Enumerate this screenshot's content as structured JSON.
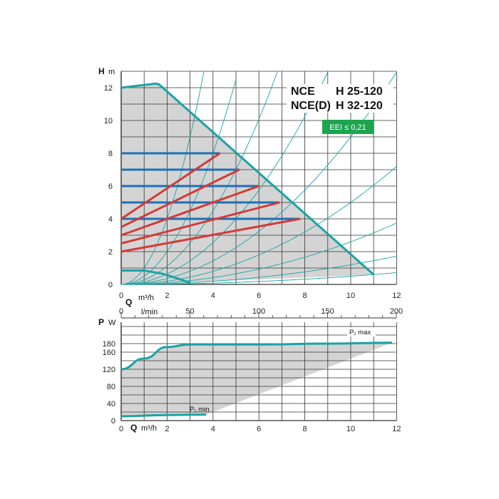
{
  "colors": {
    "teal": "#1aa3a5",
    "red": "#d23b37",
    "blue": "#1e6fb5",
    "shade": "#d4d4d4",
    "badge": "#1ea44f",
    "grid": "#333333"
  },
  "chart_data": [
    {
      "type": "line",
      "title": "",
      "model_lines": [
        "NCE",
        "H 25-120",
        "NCE(D)",
        "H 32-120"
      ],
      "badge": "EEI ≤ 0,21",
      "ylabel": "H",
      "ylabel_unit": "m",
      "xlabel": "Q",
      "xlabel_unit": "m³/h",
      "xlabel2_unit": "l/min",
      "xlim": [
        0,
        12
      ],
      "ylim": [
        0,
        13
      ],
      "x_ticks": [
        "0",
        "2",
        "4",
        "6",
        "8",
        "10",
        "12"
      ],
      "y_ticks": [
        "0",
        "2",
        "4",
        "6",
        "8",
        "10",
        "12"
      ],
      "x2_ticks": [
        "0",
        "50",
        "100",
        "150",
        "200"
      ],
      "grid": true,
      "max_curve": {
        "name": "max",
        "x": [
          0,
          1.5,
          1.65,
          11
        ],
        "y": [
          12,
          12.25,
          12.2,
          0.6
        ]
      },
      "min_curve": {
        "name": "min",
        "x": [
          0,
          1.0,
          1.8,
          2.5,
          3.0
        ],
        "y": [
          0.85,
          0.85,
          0.65,
          0.35,
          0.1
        ]
      },
      "constant_pressure": [
        {
          "head": 4,
          "x_end": 7.8
        },
        {
          "head": 5,
          "x_end": 6.9
        },
        {
          "head": 6,
          "x_end": 6.0
        },
        {
          "head": 7,
          "x_end": 5.15
        },
        {
          "head": 8,
          "x_end": 4.3
        }
      ],
      "proportional_pressure": [
        {
          "y_start": 2.0,
          "x_end": 7.8,
          "y_end": 4.0
        },
        {
          "y_start": 2.5,
          "x_end": 6.9,
          "y_end": 5.0
        },
        {
          "y_start": 3.0,
          "x_end": 6.0,
          "y_end": 6.0
        },
        {
          "y_start": 3.5,
          "x_end": 5.15,
          "y_end": 7.0
        },
        {
          "y_start": 4.0,
          "x_end": 4.3,
          "y_end": 8.0
        }
      ],
      "system_curves": [
        {
          "k": 10
        },
        {
          "k": 5
        },
        {
          "k": 2.8
        },
        {
          "k": 1.6
        },
        {
          "k": 0.9
        },
        {
          "k": 0.5
        },
        {
          "k": 0.26
        },
        {
          "k": 0.12
        },
        {
          "k": 0.05
        }
      ]
    },
    {
      "type": "line",
      "title": "",
      "ylabel": "P",
      "ylabel_unit": "W",
      "xlabel": "Q",
      "xlabel_unit": "m³/h",
      "xlim": [
        0,
        12
      ],
      "ylim": [
        0,
        200
      ],
      "x_ticks": [
        "0",
        "2",
        "4",
        "6",
        "8",
        "10",
        "12"
      ],
      "y_ticks": [
        "0",
        "40",
        "80",
        "120",
        "160",
        "180"
      ],
      "grid": true,
      "series": [
        {
          "name": "P₁ max",
          "x": [
            0,
            1.0,
            2.0,
            3.0,
            6.0,
            9.0,
            11.8
          ],
          "y": [
            120,
            145,
            172,
            178,
            178,
            180,
            182
          ]
        },
        {
          "name": "P₁ min",
          "x": [
            0,
            2.0,
            3.7
          ],
          "y": [
            10,
            13,
            14
          ]
        }
      ]
    }
  ]
}
